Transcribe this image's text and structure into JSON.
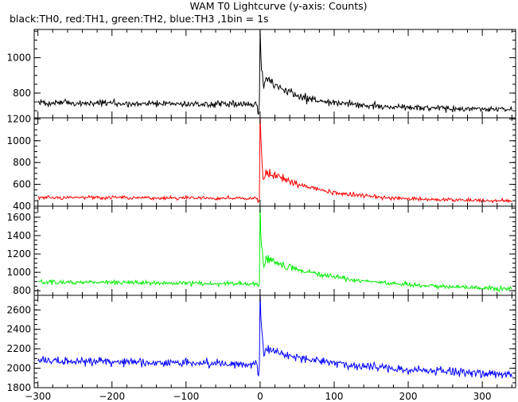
{
  "chart_data": {
    "type": "line",
    "title": "WAM T0 Lightcurve (y-axis: Counts)",
    "subtitle": "black:TH0, red:TH1, green:TH2, blue:TH3 ,1bin = 1s",
    "x_range": [
      -305,
      345
    ],
    "x_ticks": [
      -300,
      -200,
      -100,
      0,
      100,
      200,
      300
    ],
    "x_tick_labels": [
      "−300",
      "−200",
      "−100",
      "0",
      "100",
      "200",
      "300"
    ],
    "grid": false,
    "panels": [
      {
        "series_name": "TH0",
        "color": "#000000",
        "ylim": [
          660,
          1160
        ],
        "y_ticks": [
          800,
          1000
        ],
        "profile": {
          "pre_level": 745,
          "post_level": 705,
          "noise": 32,
          "peak": 1160,
          "shoulder": 880,
          "decay_tail": 45,
          "dip": 690
        }
      },
      {
        "series_name": "TH1",
        "color": "#ff0000",
        "ylim": [
          400,
          1210
        ],
        "y_ticks": [
          400,
          600,
          800,
          1000,
          1200
        ],
        "profile": {
          "pre_level": 480,
          "post_level": 445,
          "noise": 28,
          "peak": 1230,
          "shoulder": 720,
          "decay_tail": 65,
          "dip": 440
        }
      },
      {
        "series_name": "TH2",
        "color": "#00ee00",
        "ylim": [
          750,
          1720
        ],
        "y_ticks": [
          800,
          1000,
          1200,
          1400,
          1600
        ],
        "profile": {
          "pre_level": 895,
          "post_level": 815,
          "noise": 38,
          "peak": 1720,
          "shoulder": 1150,
          "decay_tail": 80,
          "dip": 860
        }
      },
      {
        "series_name": "TH3",
        "color": "#0000ff",
        "ylim": [
          1800,
          2750
        ],
        "y_ticks": [
          1800,
          2000,
          2200,
          2400,
          2600
        ],
        "profile": {
          "pre_level": 2080,
          "post_level": 1935,
          "noise": 75,
          "peak": 2750,
          "shoulder": 2200,
          "decay_tail": 60,
          "dip": 1940
        }
      }
    ]
  }
}
